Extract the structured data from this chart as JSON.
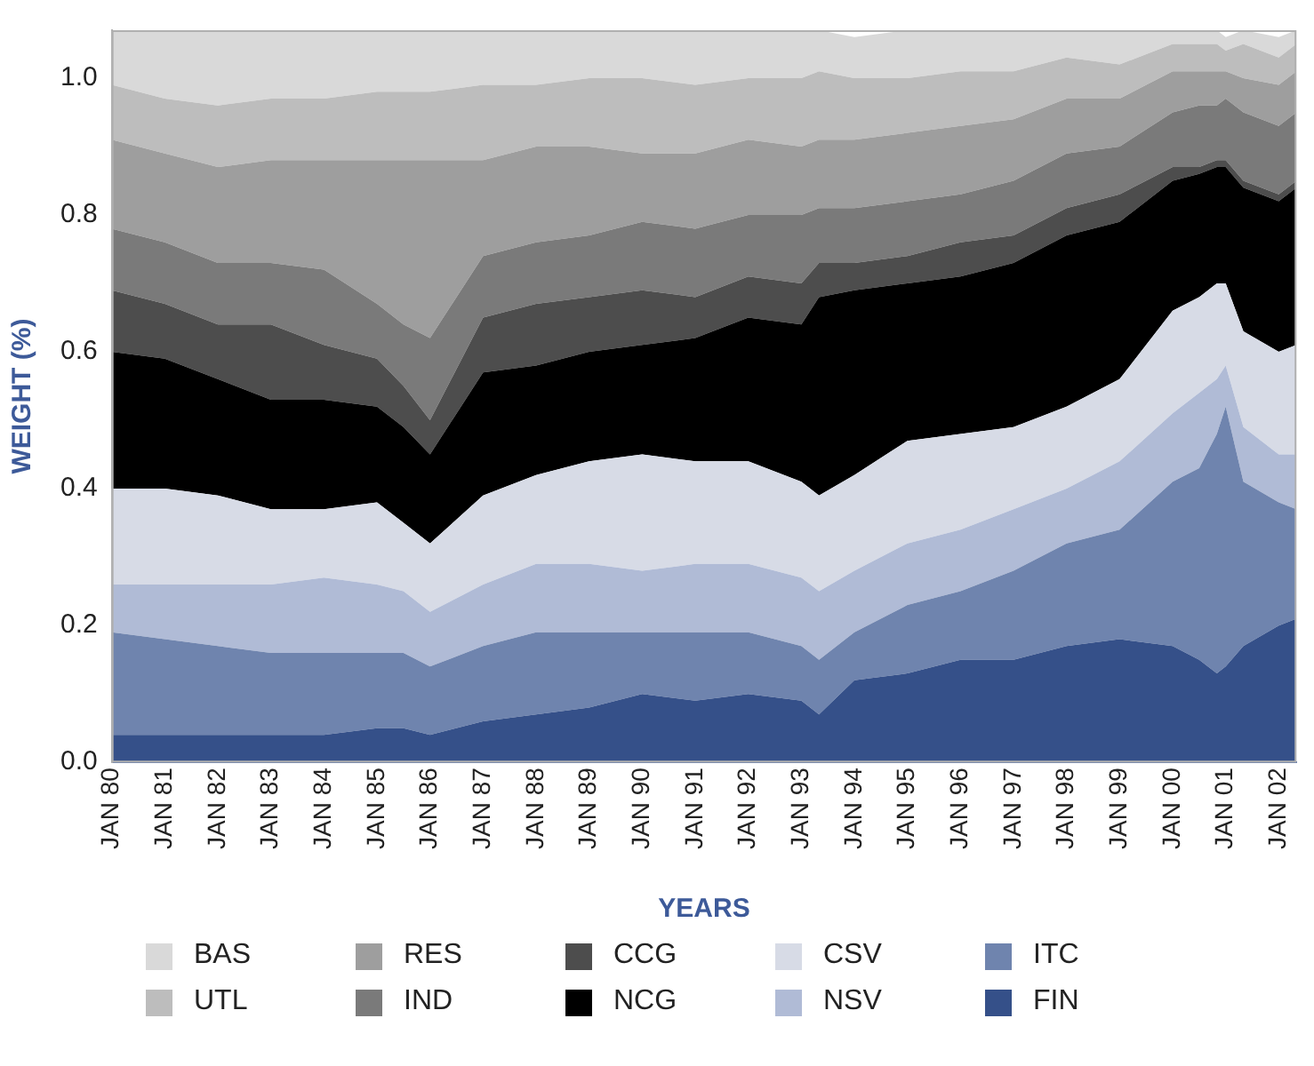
{
  "chart_data": {
    "type": "area",
    "stacked": true,
    "xlabel": "YEARS",
    "ylabel": "WEIGHT (%)",
    "legend": "bottom",
    "grid": false,
    "x": [
      "1980-01",
      "1981-01",
      "1982-01",
      "1983-01",
      "1984-01",
      "1985-01",
      "1985-07",
      "1986-01",
      "1987-01",
      "1988-01",
      "1989-01",
      "1990-01",
      "1991-01",
      "1992-01",
      "1993-01",
      "1993-05",
      "1994-01",
      "1995-01",
      "1996-01",
      "1997-01",
      "1998-01",
      "1999-01",
      "2000-01",
      "2000-07",
      "2000-11",
      "2001-01",
      "2001-05",
      "2002-01",
      "2002-05"
    ],
    "xlim": [
      "1980-01",
      "2002-05"
    ],
    "xticks": [
      {
        "value": "1980-01",
        "label": "JAN 80"
      },
      {
        "value": "1981-01",
        "label": "JAN 81"
      },
      {
        "value": "1982-01",
        "label": "JAN 82"
      },
      {
        "value": "1983-01",
        "label": "JAN 83"
      },
      {
        "value": "1984-01",
        "label": "JAN 84"
      },
      {
        "value": "1985-01",
        "label": "JAN 85"
      },
      {
        "value": "1986-01",
        "label": "JAN 86"
      },
      {
        "value": "1987-01",
        "label": "JAN 87"
      },
      {
        "value": "1988-01",
        "label": "JAN 88"
      },
      {
        "value": "1989-01",
        "label": "JAN 89"
      },
      {
        "value": "1990-01",
        "label": "JAN 90"
      },
      {
        "value": "1991-01",
        "label": "JAN 91"
      },
      {
        "value": "1992-01",
        "label": "JAN 92"
      },
      {
        "value": "1993-01",
        "label": "JAN 93"
      },
      {
        "value": "1994-01",
        "label": "JAN 94"
      },
      {
        "value": "1995-01",
        "label": "JAN 95"
      },
      {
        "value": "1996-01",
        "label": "JAN 96"
      },
      {
        "value": "1997-01",
        "label": "JAN 97"
      },
      {
        "value": "1998-01",
        "label": "JAN 98"
      },
      {
        "value": "1999-01",
        "label": "JAN 99"
      },
      {
        "value": "2000-01",
        "label": "JAN 00"
      },
      {
        "value": "2001-01",
        "label": "JAN 01"
      },
      {
        "value": "2002-01",
        "label": "JAN 02"
      }
    ],
    "ylim": [
      0,
      1.07
    ],
    "yticks": [
      {
        "value": 0,
        "label": "0.0"
      },
      {
        "value": 0.2,
        "label": "0.2"
      },
      {
        "value": 0.4,
        "label": "0.4"
      },
      {
        "value": 0.6,
        "label": "0.6"
      },
      {
        "value": 0.8,
        "label": "0.8"
      },
      {
        "value": 1,
        "label": "1.0"
      }
    ],
    "series": [
      {
        "name": "FIN",
        "color": "#355089",
        "values": [
          0.04,
          0.04,
          0.04,
          0.04,
          0.04,
          0.05,
          0.05,
          0.04,
          0.06,
          0.07,
          0.08,
          0.1,
          0.09,
          0.1,
          0.09,
          0.07,
          0.12,
          0.13,
          0.15,
          0.15,
          0.17,
          0.18,
          0.17,
          0.15,
          0.13,
          0.14,
          0.17,
          0.2,
          0.21
        ]
      },
      {
        "name": "ITC",
        "color": "#6f84ae",
        "values": [
          0.15,
          0.14,
          0.13,
          0.12,
          0.12,
          0.11,
          0.11,
          0.1,
          0.11,
          0.12,
          0.11,
          0.09,
          0.1,
          0.09,
          0.08,
          0.08,
          0.07,
          0.1,
          0.1,
          0.13,
          0.15,
          0.16,
          0.24,
          0.28,
          0.35,
          0.38,
          0.24,
          0.18,
          0.16
        ]
      },
      {
        "name": "NSV",
        "color": "#b0bbd6",
        "values": [
          0.07,
          0.08,
          0.09,
          0.1,
          0.11,
          0.1,
          0.09,
          0.08,
          0.09,
          0.1,
          0.1,
          0.09,
          0.1,
          0.1,
          0.1,
          0.1,
          0.09,
          0.09,
          0.09,
          0.09,
          0.08,
          0.1,
          0.1,
          0.11,
          0.08,
          0.06,
          0.08,
          0.07,
          0.08
        ]
      },
      {
        "name": "CSV",
        "color": "#d7dbe6",
        "values": [
          0.14,
          0.14,
          0.13,
          0.11,
          0.1,
          0.12,
          0.1,
          0.1,
          0.13,
          0.13,
          0.15,
          0.17,
          0.15,
          0.15,
          0.14,
          0.14,
          0.14,
          0.15,
          0.14,
          0.12,
          0.12,
          0.12,
          0.15,
          0.14,
          0.14,
          0.12,
          0.14,
          0.15,
          0.16
        ]
      },
      {
        "name": "NCG",
        "color": "#000000",
        "values": [
          0.2,
          0.19,
          0.17,
          0.16,
          0.16,
          0.14,
          0.14,
          0.13,
          0.18,
          0.16,
          0.16,
          0.16,
          0.18,
          0.21,
          0.23,
          0.29,
          0.27,
          0.23,
          0.23,
          0.24,
          0.25,
          0.23,
          0.19,
          0.18,
          0.17,
          0.17,
          0.21,
          0.22,
          0.23
        ]
      },
      {
        "name": "CCG",
        "color": "#4d4d4d",
        "values": [
          0.09,
          0.08,
          0.08,
          0.11,
          0.08,
          0.07,
          0.06,
          0.05,
          0.08,
          0.09,
          0.08,
          0.08,
          0.06,
          0.06,
          0.06,
          0.05,
          0.04,
          0.04,
          0.05,
          0.04,
          0.04,
          0.04,
          0.02,
          0.01,
          0.01,
          0.01,
          0.01,
          0.01,
          0.01
        ]
      },
      {
        "name": "IND",
        "color": "#7a7a7a",
        "values": [
          0.09,
          0.09,
          0.09,
          0.09,
          0.11,
          0.08,
          0.09,
          0.12,
          0.09,
          0.09,
          0.09,
          0.1,
          0.1,
          0.09,
          0.1,
          0.08,
          0.08,
          0.08,
          0.07,
          0.08,
          0.08,
          0.07,
          0.08,
          0.09,
          0.08,
          0.09,
          0.1,
          0.1,
          0.1
        ]
      },
      {
        "name": "RES",
        "color": "#9e9e9e",
        "values": [
          0.13,
          0.13,
          0.14,
          0.15,
          0.16,
          0.21,
          0.24,
          0.26,
          0.14,
          0.14,
          0.13,
          0.1,
          0.11,
          0.11,
          0.1,
          0.1,
          0.1,
          0.1,
          0.1,
          0.09,
          0.08,
          0.07,
          0.06,
          0.05,
          0.05,
          0.04,
          0.05,
          0.06,
          0.06
        ]
      },
      {
        "name": "UTL",
        "color": "#bdbdbd",
        "values": [
          0.08,
          0.08,
          0.09,
          0.09,
          0.09,
          0.1,
          0.1,
          0.1,
          0.11,
          0.09,
          0.1,
          0.11,
          0.1,
          0.09,
          0.1,
          0.1,
          0.09,
          0.08,
          0.08,
          0.07,
          0.06,
          0.05,
          0.04,
          0.04,
          0.04,
          0.03,
          0.05,
          0.04,
          0.04
        ]
      },
      {
        "name": "BAS",
        "color": "#d9d9d9",
        "values": [
          0.08,
          0.1,
          0.11,
          0.1,
          0.1,
          0.09,
          0.09,
          0.09,
          0.08,
          0.08,
          0.07,
          0.07,
          0.08,
          0.07,
          0.07,
          0.06,
          0.06,
          0.07,
          0.06,
          0.06,
          0.04,
          0.05,
          0.02,
          0.02,
          0.02,
          0.02,
          0.02,
          0.03,
          0.02
        ]
      }
    ]
  }
}
